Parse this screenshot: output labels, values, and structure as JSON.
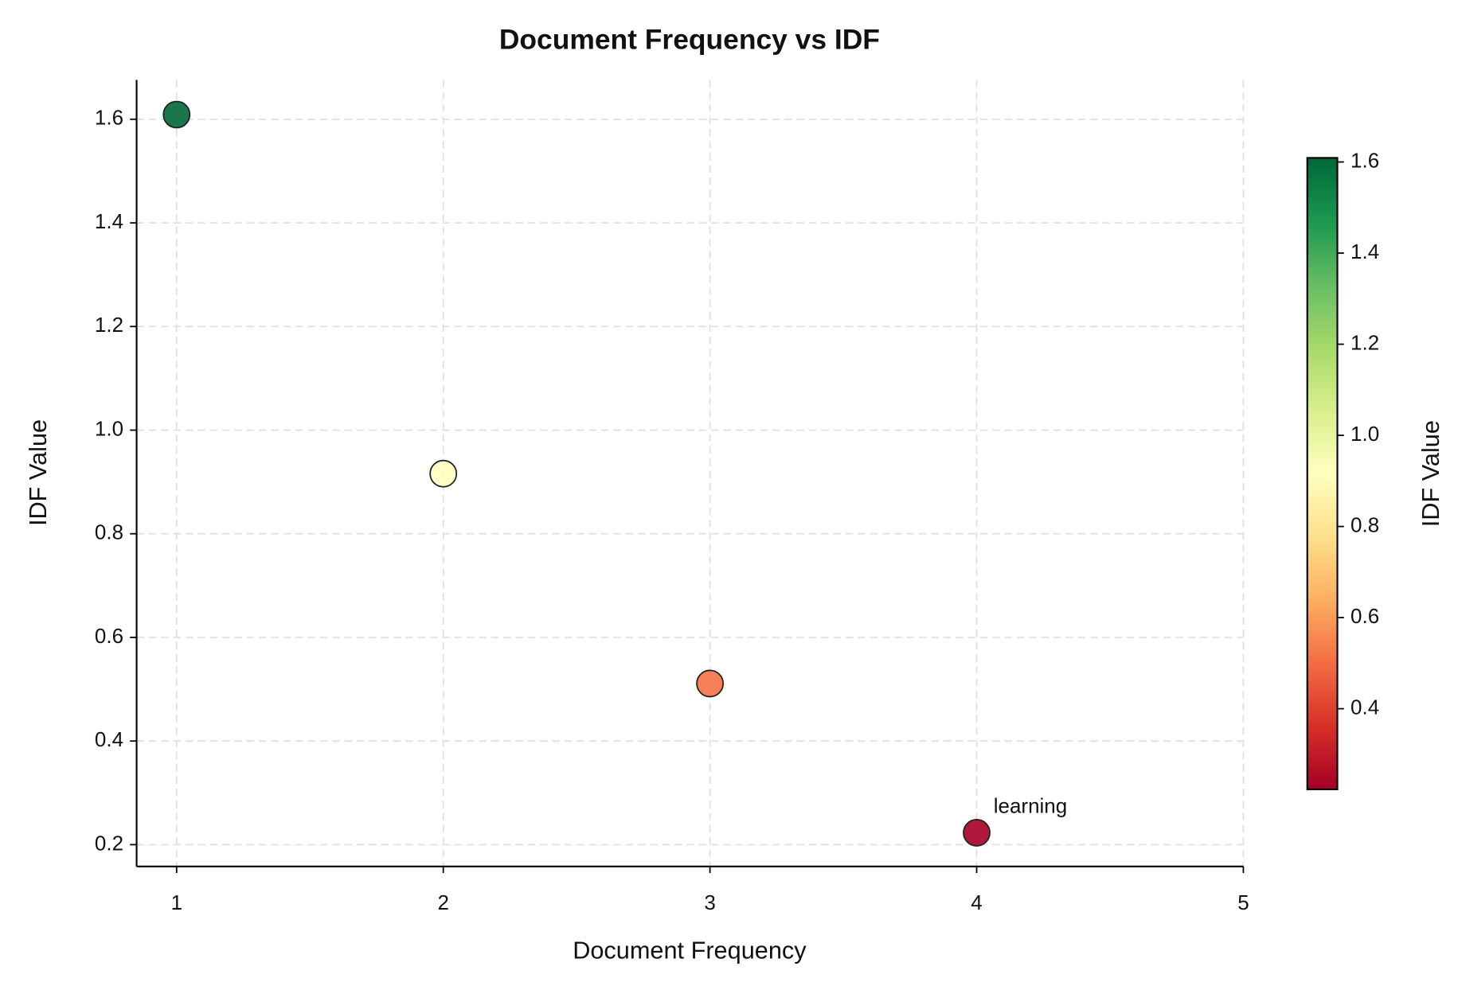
{
  "chart_data": {
    "type": "scatter",
    "title": "Document Frequency vs IDF",
    "x_label": "Document Frequency",
    "y_label": "IDF Value",
    "series": [
      {
        "x": [
          1,
          2,
          3,
          4
        ],
        "values": [
          1.609,
          0.916,
          0.511,
          0.223
        ],
        "labels": [
          null,
          null,
          null,
          "learning"
        ]
      }
    ],
    "xlim": [
      0.85,
      5
    ],
    "xticks": [
      1,
      2,
      3,
      4,
      5
    ],
    "ylim": [
      0.158,
      1.676
    ],
    "yticks": [
      0.2,
      0.4,
      0.6,
      0.8,
      {
        "value": 1.0,
        "label": "1.0"
      },
      1.2,
      1.4,
      1.6
    ],
    "grid": true,
    "colorbar": {
      "label": "IDF Value",
      "lim": [
        0.223,
        1.609
      ],
      "ticks": [
        0.4,
        0.6,
        0.8,
        {
          "value": 1.0,
          "label": "1.0"
        },
        1.2,
        1.4,
        1.6
      ],
      "colormap": [
        "#a50026",
        "#d73027",
        "#f46d43",
        "#fdae61",
        "#fee08b",
        "#ffffbf",
        "#d9ef8b",
        "#a6d96a",
        "#66bd63",
        "#1a9850",
        "#006837"
      ]
    }
  }
}
